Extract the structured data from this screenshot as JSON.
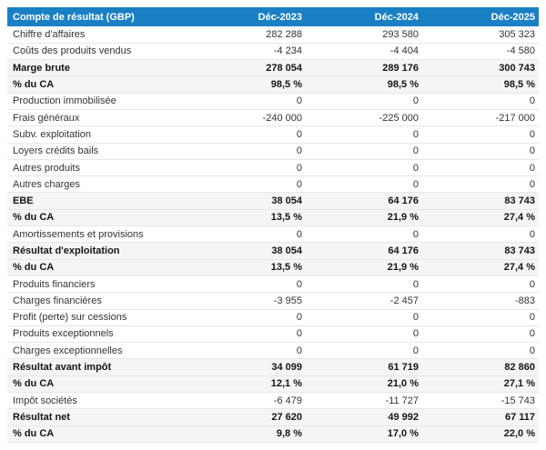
{
  "table": {
    "header": {
      "title": "Compte de résultat (GBP)",
      "columns": [
        "Déc-2023",
        "Déc-2024",
        "Déc-2025"
      ]
    },
    "rows": [
      {
        "label": "Chiffre d'affaires",
        "values": [
          "282 288",
          "293 580",
          "305 323"
        ],
        "emphasis": false
      },
      {
        "label": "Coûts des produits vendus",
        "values": [
          "-4 234",
          "-4 404",
          "-4 580"
        ],
        "emphasis": false
      },
      {
        "label": "Marge brute",
        "values": [
          "278 054",
          "289 176",
          "300 743"
        ],
        "emphasis": true
      },
      {
        "label": "% du CA",
        "values": [
          "98,5 %",
          "98,5 %",
          "98,5 %"
        ],
        "emphasis": true
      },
      {
        "label": "Production immobilisée",
        "values": [
          "0",
          "0",
          "0"
        ],
        "emphasis": false
      },
      {
        "label": "Frais généraux",
        "values": [
          "-240 000",
          "-225 000",
          "-217 000"
        ],
        "emphasis": false
      },
      {
        "label": "Subv. exploitation",
        "values": [
          "0",
          "0",
          "0"
        ],
        "emphasis": false
      },
      {
        "label": "Loyers crédits bails",
        "values": [
          "0",
          "0",
          "0"
        ],
        "emphasis": false
      },
      {
        "label": "Autres produits",
        "values": [
          "0",
          "0",
          "0"
        ],
        "emphasis": false
      },
      {
        "label": "Autres charges",
        "values": [
          "0",
          "0",
          "0"
        ],
        "emphasis": false
      },
      {
        "label": "EBE",
        "values": [
          "38 054",
          "64 176",
          "83 743"
        ],
        "emphasis": true
      },
      {
        "label": "% du CA",
        "values": [
          "13,5 %",
          "21,9 %",
          "27,4 %"
        ],
        "emphasis": true
      },
      {
        "label": "Amortissements et provisions",
        "values": [
          "0",
          "0",
          "0"
        ],
        "emphasis": false
      },
      {
        "label": "Résultat d'exploitation",
        "values": [
          "38 054",
          "64 176",
          "83 743"
        ],
        "emphasis": true
      },
      {
        "label": "% du CA",
        "values": [
          "13,5 %",
          "21,9 %",
          "27,4 %"
        ],
        "emphasis": true
      },
      {
        "label": "Produits financiers",
        "values": [
          "0",
          "0",
          "0"
        ],
        "emphasis": false
      },
      {
        "label": "Charges financières",
        "values": [
          "-3 955",
          "-2 457",
          "-883"
        ],
        "emphasis": false
      },
      {
        "label": "Profit (perte) sur cessions",
        "values": [
          "0",
          "0",
          "0"
        ],
        "emphasis": false
      },
      {
        "label": "Produits exceptionnels",
        "values": [
          "0",
          "0",
          "0"
        ],
        "emphasis": false
      },
      {
        "label": "Charges exceptionnelles",
        "values": [
          "0",
          "0",
          "0"
        ],
        "emphasis": false
      },
      {
        "label": "Résultat avant impôt",
        "values": [
          "34 099",
          "61 719",
          "82 860"
        ],
        "emphasis": true
      },
      {
        "label": "% du CA",
        "values": [
          "12,1 %",
          "21,0 %",
          "27,1 %"
        ],
        "emphasis": true
      },
      {
        "label": "Impôt sociétés",
        "values": [
          "-6 479",
          "-11 727",
          "-15 743"
        ],
        "emphasis": false
      },
      {
        "label": "Résultat net",
        "values": [
          "27 620",
          "49 992",
          "67 117"
        ],
        "emphasis": true
      },
      {
        "label": "% du CA",
        "values": [
          "9,8 %",
          "17,0 %",
          "22,0 %"
        ],
        "emphasis": true
      }
    ]
  },
  "colors": {
    "header-bg": "#1a80c4",
    "header-text": "#ffffff",
    "emph-bg": "#f5f5f5",
    "border": "#e7e7e7",
    "text": "#333333",
    "text-strong": "#151515"
  }
}
